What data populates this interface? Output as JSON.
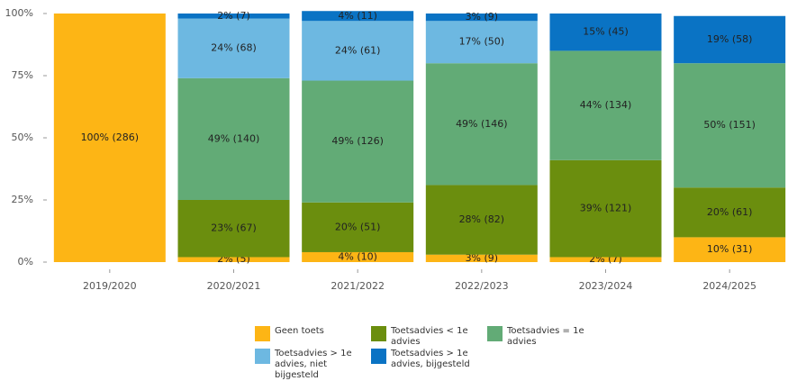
{
  "chart_data": {
    "type": "stacked_bar",
    "categories": [
      "2019/2020",
      "2020/2021",
      "2021/2022",
      "2022/2023",
      "2023/2024",
      "2024/2025"
    ],
    "series": [
      {
        "name": "Geen toets",
        "color": "#FDB515",
        "values": [
          100,
          2,
          4,
          3,
          2,
          10
        ],
        "value_labels": [
          "100% (286)",
          "2% (5)",
          "4% (10)",
          "3% (9)",
          "2% (7)",
          "10% (31)"
        ]
      },
      {
        "name": "Toetsadvies < 1e advies",
        "color": "#6B8E0E",
        "values": [
          null,
          23,
          20,
          28,
          39,
          20
        ],
        "value_labels": [
          null,
          "23% (67)",
          "20% (51)",
          "28% (82)",
          "39% (121)",
          "20% (61)"
        ]
      },
      {
        "name": "Toetsadvies = 1e advies",
        "color": "#62AB76",
        "values": [
          null,
          49,
          49,
          49,
          44,
          50
        ],
        "value_labels": [
          null,
          "49% (140)",
          "49% (126)",
          "49% (146)",
          "44% (134)",
          "50% (151)"
        ]
      },
      {
        "name": "Toetsadvies > 1e advies, niet bijgesteld",
        "color": "#6DB8E1",
        "values": [
          null,
          24,
          24,
          17,
          null,
          null
        ],
        "value_labels": [
          null,
          "24% (68)",
          "24% (61)",
          "17% (50)",
          null,
          null
        ]
      },
      {
        "name": "Toetsadvies > 1e advies, bijgesteld",
        "color": "#0A73C4",
        "values": [
          null,
          2,
          4,
          3,
          15,
          19
        ],
        "value_labels": [
          null,
          "2% (7)",
          "4% (11)",
          "3% (9)",
          "15% (45)",
          "19% (58)"
        ]
      }
    ],
    "ylim": [
      0,
      100
    ],
    "yticks": [
      {
        "value": 0,
        "label": "0%"
      },
      {
        "value": 25,
        "label": "25%"
      },
      {
        "value": 50,
        "label": "50%"
      },
      {
        "value": 75,
        "label": "75%"
      },
      {
        "value": 100,
        "label": "100%"
      }
    ]
  }
}
